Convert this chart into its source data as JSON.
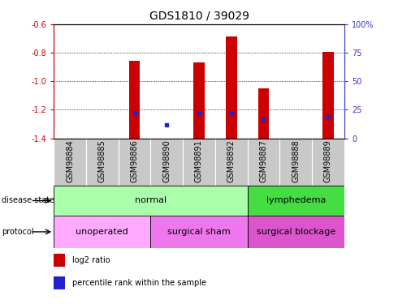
{
  "title": "GDS1810 / 39029",
  "samples": [
    "GSM98884",
    "GSM98885",
    "GSM98886",
    "GSM98890",
    "GSM98891",
    "GSM98892",
    "GSM98887",
    "GSM98888",
    "GSM98889"
  ],
  "log2_ratio": [
    null,
    null,
    -0.855,
    -1.41,
    -0.865,
    -0.685,
    -1.05,
    null,
    -0.795
  ],
  "percentile_rank": [
    null,
    null,
    22,
    12,
    22,
    22,
    17,
    null,
    19
  ],
  "ylim_left": [
    -1.4,
    -0.6
  ],
  "ylim_right": [
    0,
    100
  ],
  "yticks_left": [
    -1.4,
    -1.2,
    -1.0,
    -0.8,
    -0.6
  ],
  "yticks_right": [
    0,
    25,
    50,
    75,
    100
  ],
  "left_color": "#cc0000",
  "right_color": "#3333cc",
  "bar_color": "#cc0000",
  "dot_color": "#2222cc",
  "disease_state_groups": [
    {
      "label": "normal",
      "cols": [
        0,
        1,
        2,
        3,
        4,
        5
      ],
      "color": "#aaffaa"
    },
    {
      "label": "lymphedema",
      "cols": [
        6,
        7,
        8
      ],
      "color": "#44dd44"
    }
  ],
  "protocol_groups": [
    {
      "label": "unoperated",
      "cols": [
        0,
        1,
        2
      ],
      "color": "#ffaaff"
    },
    {
      "label": "surgical sham",
      "cols": [
        3,
        4,
        5
      ],
      "color": "#ee77ee"
    },
    {
      "label": "surgical blockage",
      "cols": [
        6,
        7,
        8
      ],
      "color": "#dd55cc"
    }
  ],
  "legend_items": [
    {
      "label": "log2 ratio",
      "color": "#cc0000"
    },
    {
      "label": "percentile rank within the sample",
      "color": "#2222cc"
    }
  ],
  "bar_width": 0.35,
  "label_fontsize": 7,
  "tick_fontsize": 7,
  "title_fontsize": 10,
  "annot_fontsize": 8
}
